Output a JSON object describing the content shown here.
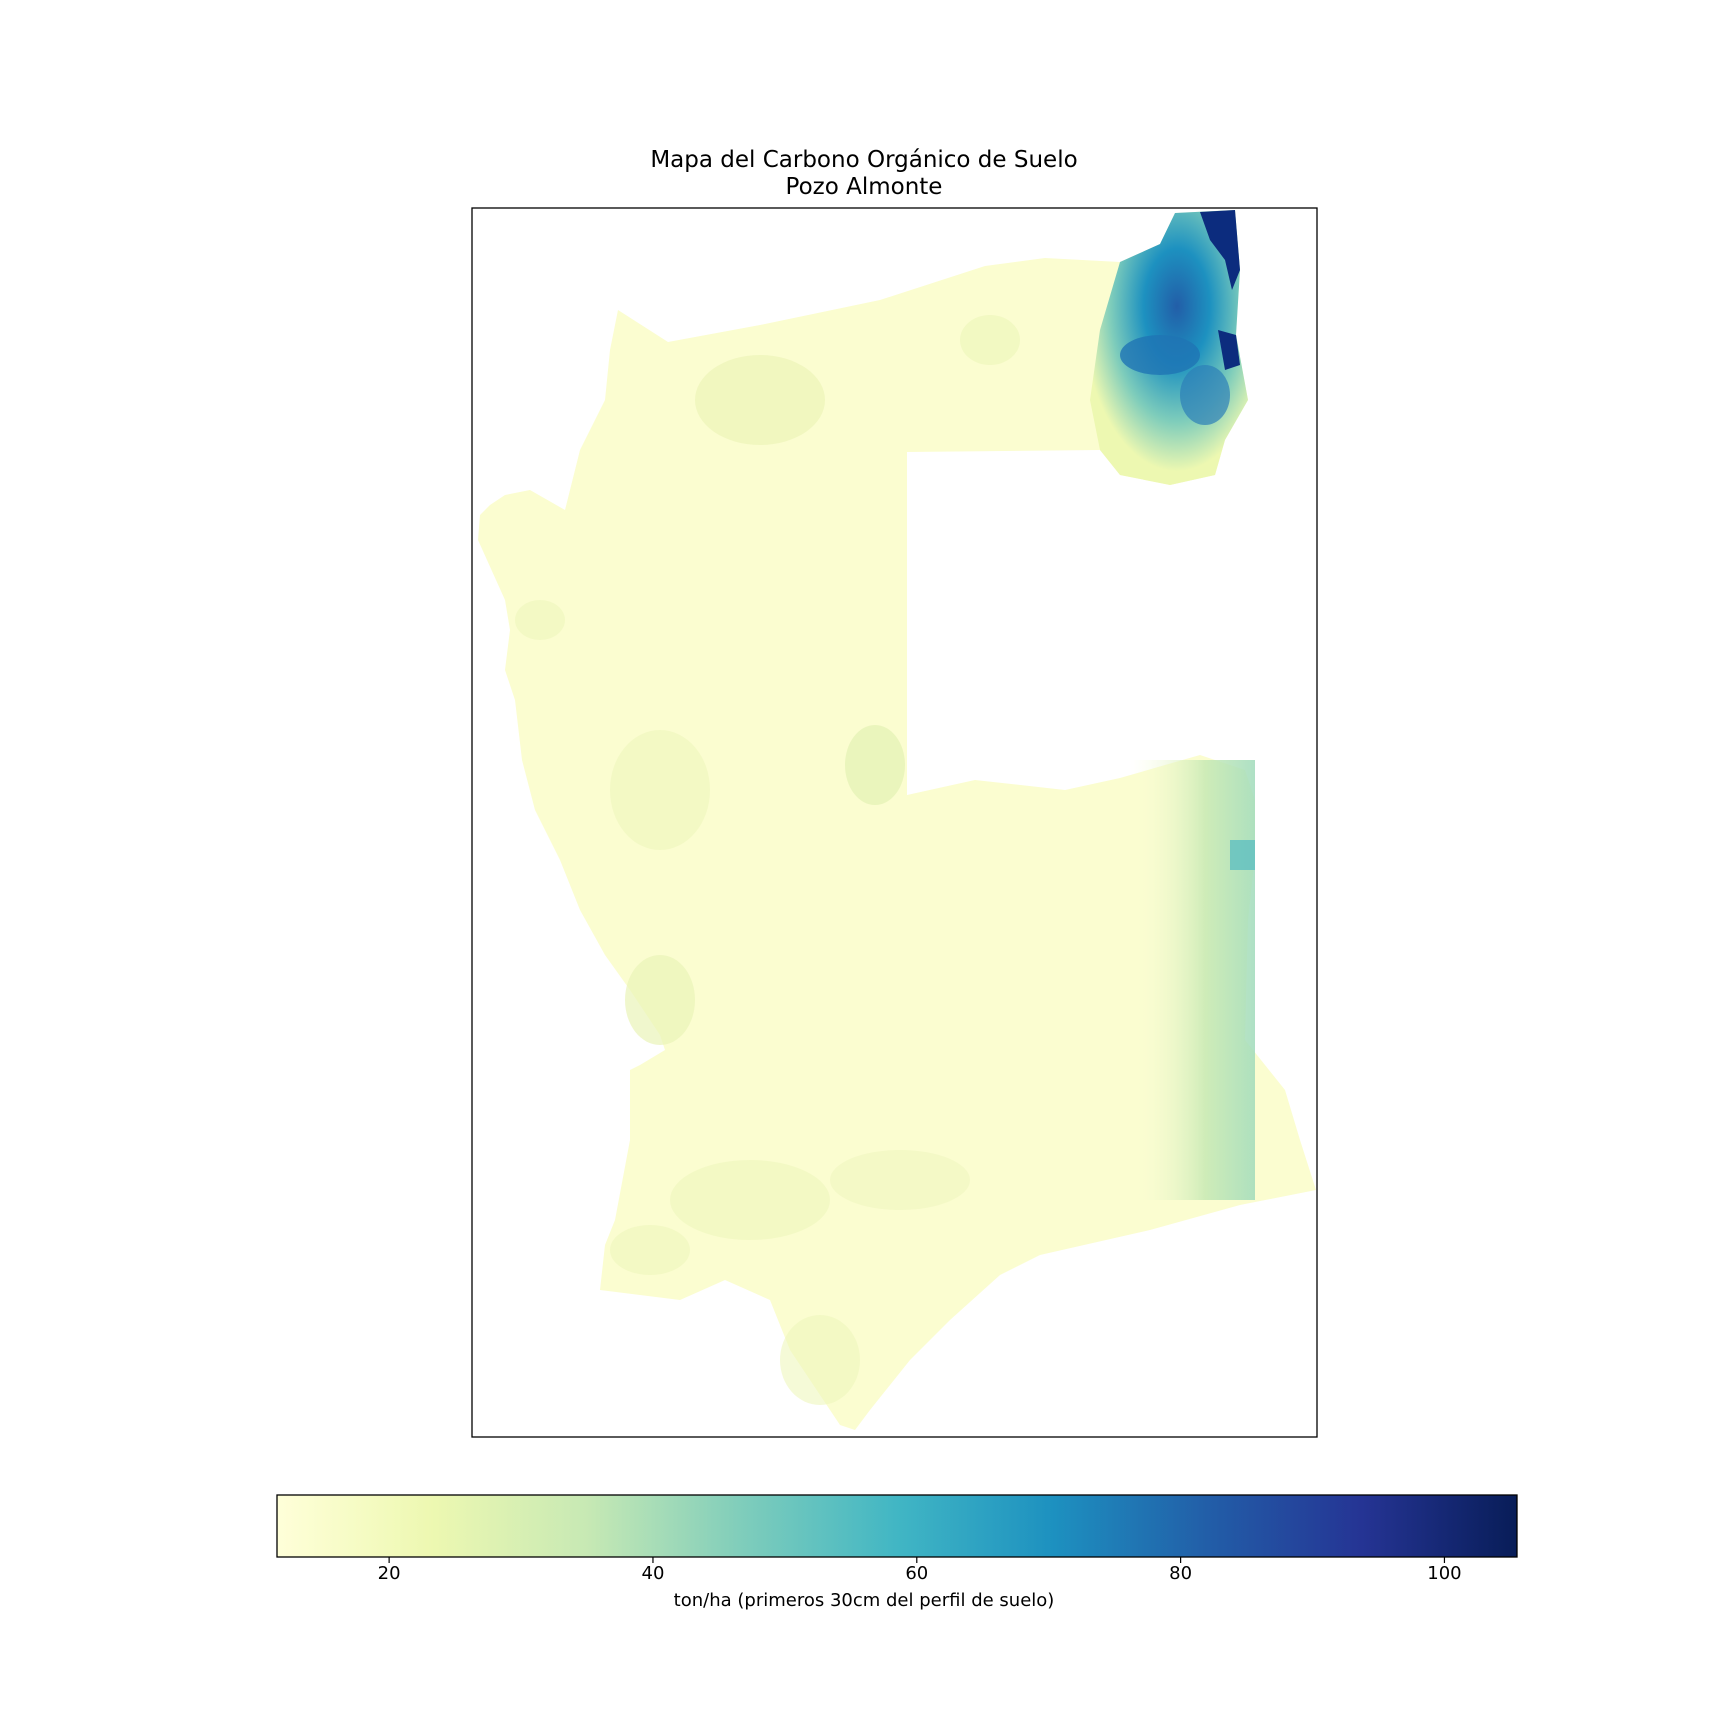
{
  "title_line1": "Mapa del Carbono Orgánico de Suelo",
  "title_line2": "Pozo Almonte",
  "colorbar": {
    "label": "ton/ha (primeros 30cm del perfil de suelo)",
    "min": 11.5,
    "max": 105.5,
    "ticks": [
      20,
      40,
      60,
      80,
      100
    ],
    "tick_labels": [
      "20",
      "40",
      "60",
      "80",
      "100"
    ],
    "colormap": "YlGnBu",
    "colors": [
      "#ffffd9",
      "#edf8b1",
      "#c7e9b4",
      "#7fcdbb",
      "#41b6c4",
      "#1d91c0",
      "#225ea8",
      "#253494",
      "#081d58"
    ]
  },
  "chart_data": {
    "type": "heatmap",
    "title": "Mapa del Carbono Orgánico de Suelo\nPozo Almonte",
    "colorbar_label": "ton/ha (primeros 30cm del perfil de suelo)",
    "value_range": [
      11.5,
      105.5
    ],
    "typical_value": 20,
    "high_values_region": "northeast corner (60-105 ton/ha)",
    "moderate_values_region": "eastern edge (35-55 ton/ha)"
  }
}
